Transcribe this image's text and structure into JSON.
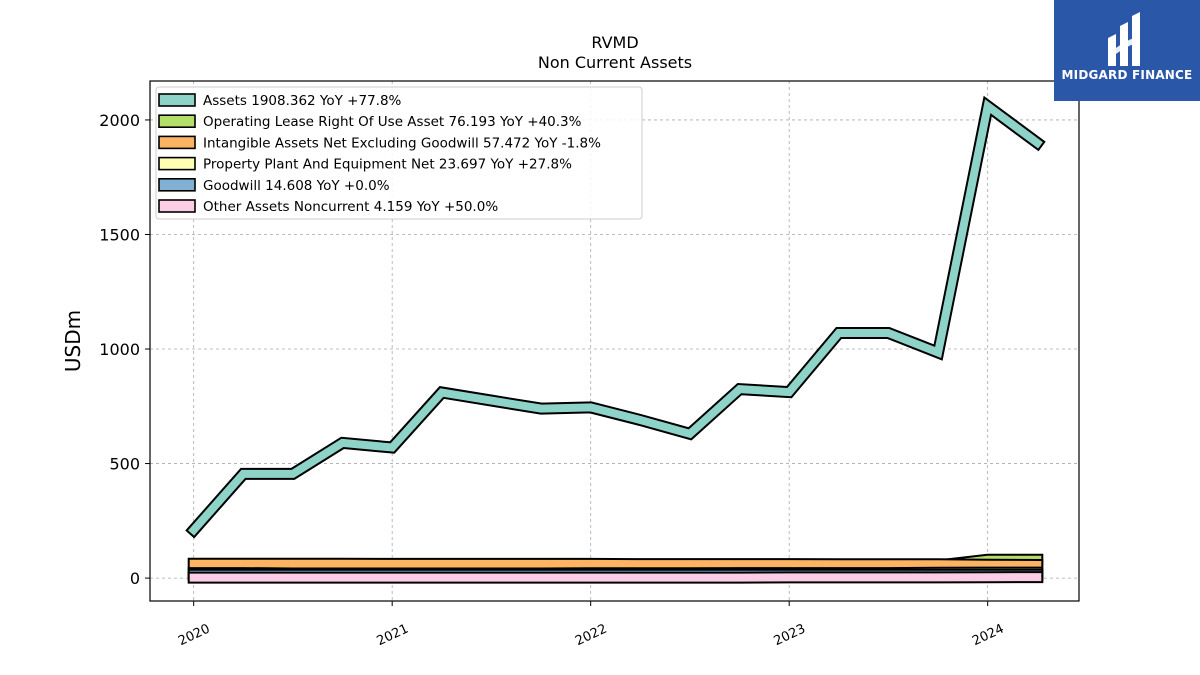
{
  "chart_data": {
    "type": "area",
    "title": "RVMD",
    "subtitle": "Non Current  Assets",
    "ylabel": "USDm",
    "xlabel": "",
    "xlim": [
      2019.78,
      2024.46
    ],
    "ylim": [
      -100,
      2170
    ],
    "yticks": [
      0,
      500,
      1000,
      1500,
      2000
    ],
    "xticks": [
      {
        "value": 2020,
        "label": "2020"
      },
      {
        "value": 2021,
        "label": "2021"
      },
      {
        "value": 2022,
        "label": "2022"
      },
      {
        "value": 2023,
        "label": "2023"
      },
      {
        "value": 2024,
        "label": "2024"
      }
    ],
    "grid": true,
    "legend_position": "top-left",
    "x": [
      2020.0,
      2020.25,
      2020.5,
      2020.75,
      2021.0,
      2021.25,
      2021.5,
      2021.75,
      2022.0,
      2022.25,
      2022.5,
      2022.75,
      2023.0,
      2023.25,
      2023.5,
      2023.75,
      2024.0,
      2024.25
    ],
    "series": [
      {
        "name": "Assets  1908.362 YoY +77.8%",
        "color": "#8dd3c7",
        "values": [
          210,
          455,
          455,
          590,
          570,
          810,
          775,
          740,
          745,
          690,
          630,
          825,
          812,
          1070,
          1070,
          985,
          2060,
          1900
        ]
      },
      {
        "name": "Operating Lease Right Of Use Asset  76.193 YoY +40.3%",
        "color": "#b3de69",
        "values": [
          null,
          null,
          null,
          null,
          null,
          null,
          null,
          null,
          null,
          null,
          null,
          null,
          null,
          null,
          null,
          55,
          80,
          80
        ]
      },
      {
        "name": "Intangible Assets Net Excluding Goodwill  57.472 YoY -1.8%",
        "color": "#fdb462",
        "values": [
          63,
          63,
          63,
          63,
          62,
          62,
          62,
          62,
          62,
          61,
          61,
          61,
          61,
          60,
          60,
          60,
          58,
          57
        ]
      },
      {
        "name": "Property Plant And Equipment Net  23.697 YoY +27.8%",
        "color": "#ffffb3",
        "values": [
          22,
          22,
          20,
          20,
          20,
          20,
          20,
          20,
          21,
          21,
          21,
          22,
          22,
          22,
          22,
          23,
          24,
          24
        ]
      },
      {
        "name": "Goodwill  14.608 YoY +0.0%",
        "color": "#80b1d3",
        "values": [
          14.608,
          14.608,
          14.608,
          14.608,
          14.608,
          14.608,
          14.608,
          14.608,
          14.608,
          14.608,
          14.608,
          14.608,
          14.608,
          14.608,
          14.608,
          14.608,
          14.608,
          14.608
        ]
      },
      {
        "name": "Other Assets Noncurrent  4.159 YoY +50.0%",
        "color": "#fccde5",
        "values": [
          2,
          2,
          2,
          2,
          2,
          2,
          2,
          2,
          2,
          2,
          2,
          2,
          3,
          3,
          3,
          3,
          4,
          4.159
        ]
      }
    ]
  },
  "logo": {
    "text": "MIDGARD FINANCE",
    "color": "#2a57a8"
  }
}
